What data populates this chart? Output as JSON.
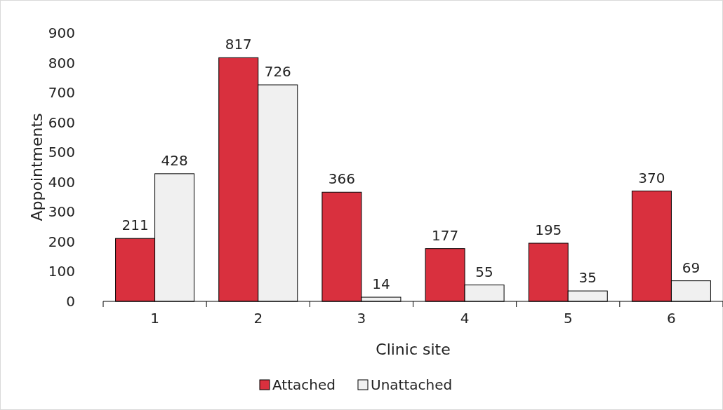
{
  "chart_data": {
    "type": "bar",
    "xlabel": "Clinic site",
    "ylabel": "Appointments",
    "categories": [
      "1",
      "2",
      "3",
      "4",
      "5",
      "6"
    ],
    "series": [
      {
        "name": "Attached",
        "color": "#d9303e",
        "values": [
          211,
          817,
          366,
          177,
          195,
          370
        ]
      },
      {
        "name": "Unattached",
        "color": "#f0f0f0",
        "values": [
          428,
          726,
          14,
          55,
          35,
          69
        ]
      }
    ],
    "ylim": [
      0,
      900
    ],
    "yticks": [
      0,
      100,
      200,
      300,
      400,
      500,
      600,
      700,
      800,
      900
    ],
    "grid": false,
    "legend": "bottom",
    "data_labels": true
  }
}
